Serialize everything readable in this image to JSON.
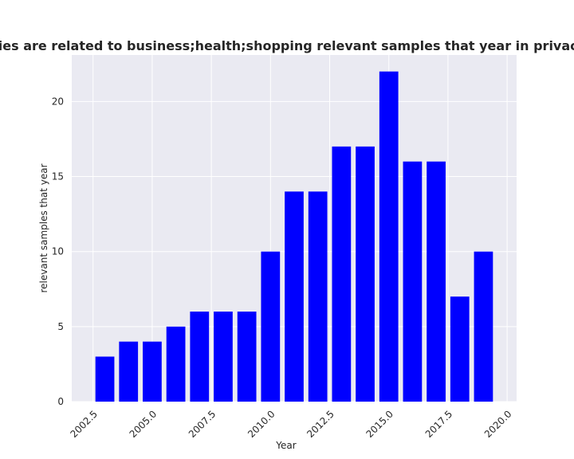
{
  "chart_data": {
    "type": "bar",
    "title": "ategories are related to business;health;shopping relevant samples that year in privacy policie",
    "xlabel": "Year",
    "ylabel": "relevant samples that year",
    "x": [
      2003,
      2004,
      2005,
      2006,
      2007,
      2008,
      2009,
      2010,
      2011,
      2012,
      2013,
      2014,
      2015,
      2016,
      2017,
      2018,
      2019
    ],
    "values": [
      3,
      4,
      4,
      5,
      6,
      6,
      6,
      10,
      14,
      14,
      17,
      17,
      22,
      16,
      16,
      7,
      10
    ],
    "xlim": [
      2001.6,
      2020.4
    ],
    "ylim": [
      0,
      23.1
    ],
    "xticks": [
      "2002.5",
      "2005.0",
      "2007.5",
      "2010.0",
      "2012.5",
      "2015.0",
      "2017.5",
      "2020.0"
    ],
    "yticks": [
      "0",
      "5",
      "10",
      "15",
      "20"
    ],
    "bar_color": "#0000ff",
    "grid": true,
    "plot_background": "#eaeaf2",
    "gridline_color": "#ffffff"
  }
}
